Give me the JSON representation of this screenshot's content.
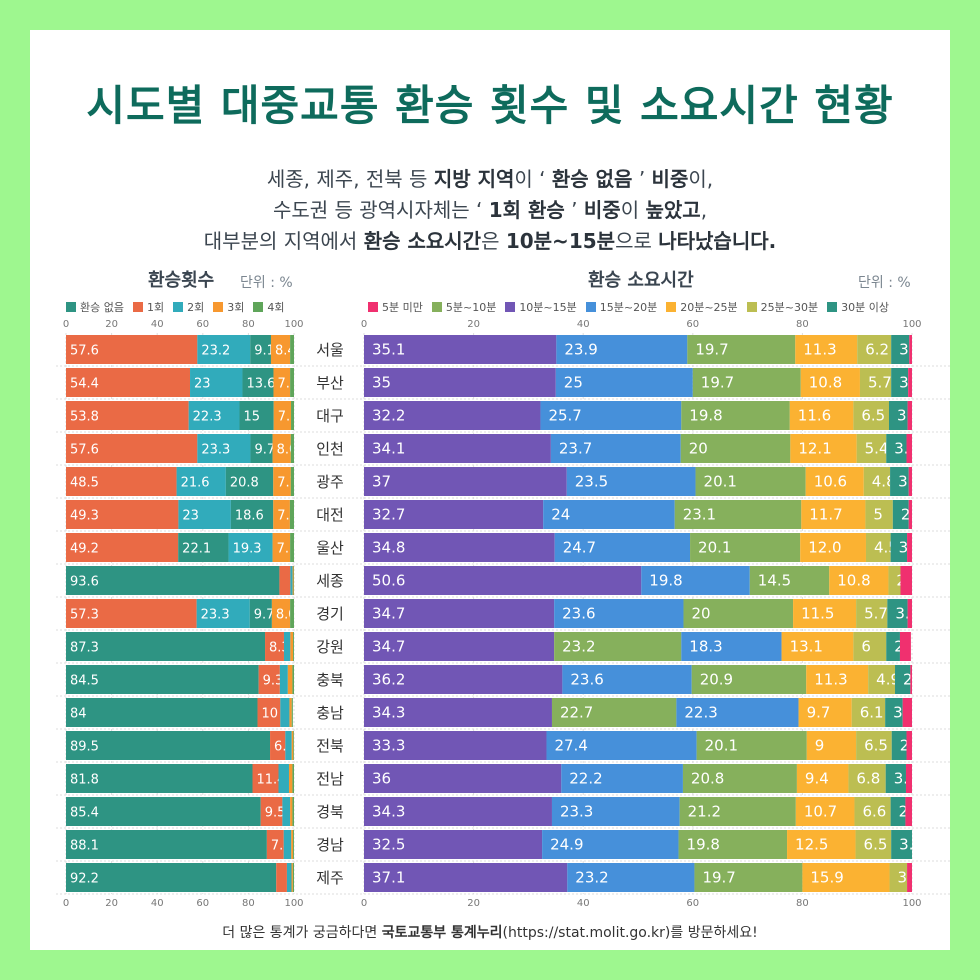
{
  "title": "시도별 대중교통 환승 횟수 및 소요시간 현황",
  "subtitle": [
    [
      {
        "t": "세종, 제주, 전북 등 "
      },
      {
        "t": "지방 지역",
        "b": true
      },
      {
        "t": "이 ‘ "
      },
      {
        "t": "환승 없음",
        "b": true
      },
      {
        "t": " ’ "
      },
      {
        "t": "비중",
        "b": true
      },
      {
        "t": "이,"
      }
    ],
    [
      {
        "t": "수도권 등 광역시자체는 ‘ "
      },
      {
        "t": "1회 환승",
        "b": true
      },
      {
        "t": " ’ "
      },
      {
        "t": "비중",
        "b": true
      },
      {
        "t": "이 "
      },
      {
        "t": "높았고",
        "b": true
      },
      {
        "t": ","
      }
    ],
    [
      {
        "t": "대부분의 지역에서 "
      },
      {
        "t": "환승 소요시간",
        "b": true
      },
      {
        "t": "은 "
      },
      {
        "t": "10분~15분",
        "b": true
      },
      {
        "t": "으로 "
      },
      {
        "t": "나타났습니다.",
        "b": true
      }
    ]
  ],
  "footer": [
    {
      "t": "더 많은 통계가 궁금하다면 "
    },
    {
      "t": "국토교통부 통계누리",
      "b": true
    },
    {
      "t": "(https://stat.molit.go.kr)를 방문하세요!"
    }
  ],
  "regions": [
    "서울",
    "부산",
    "대구",
    "인천",
    "광주",
    "대전",
    "울산",
    "세종",
    "경기",
    "강원",
    "충북",
    "충남",
    "전북",
    "전남",
    "경북",
    "경남",
    "제주"
  ],
  "chart_data": [
    {
      "type": "bar",
      "orientation": "horizontal",
      "stacked": true,
      "title": "환승횟수",
      "unit": "단위 : %",
      "xlim": [
        0,
        100
      ],
      "ticks": [
        "0",
        "20",
        "40",
        "60",
        "80",
        "100"
      ],
      "legend_position": "top",
      "series": [
        {
          "name": "환승 없음",
          "color": "#2e9483"
        },
        {
          "name": "1회",
          "color": "#ea6a45"
        },
        {
          "name": "2회",
          "color": "#31abbb"
        },
        {
          "name": "3회",
          "color": "#f7982f"
        },
        {
          "name": "4회",
          "color": "#5fa55a"
        }
      ],
      "rows": [
        [
          [
            1,
            57.6,
            "57.6"
          ],
          [
            2,
            23.2,
            "23.2"
          ],
          [
            0,
            9.1,
            "9.1"
          ],
          [
            3,
            8.4,
            "8.4"
          ],
          [
            4,
            1.7
          ]
        ],
        [
          [
            1,
            54.4,
            "54.4"
          ],
          [
            2,
            23,
            "23"
          ],
          [
            0,
            13.6,
            "13.6"
          ],
          [
            3,
            7.3,
            "7.3"
          ],
          [
            4,
            1.7
          ]
        ],
        [
          [
            1,
            53.8,
            "53.8"
          ],
          [
            2,
            22.3,
            "22.3"
          ],
          [
            0,
            15,
            "15"
          ],
          [
            3,
            7.6,
            "7.6"
          ],
          [
            4,
            1.3
          ]
        ],
        [
          [
            1,
            57.6,
            "57.6"
          ],
          [
            2,
            23.3,
            "23.3"
          ],
          [
            0,
            9.7,
            "9.7"
          ],
          [
            3,
            8.0,
            "8.0"
          ],
          [
            4,
            1.4
          ]
        ],
        [
          [
            1,
            48.5,
            "48.5"
          ],
          [
            2,
            21.6,
            "21.6"
          ],
          [
            0,
            20.8,
            "20.8"
          ],
          [
            3,
            7.7,
            "7.7"
          ],
          [
            4,
            1.4
          ]
        ],
        [
          [
            1,
            49.3,
            "49.3"
          ],
          [
            2,
            23,
            "23"
          ],
          [
            0,
            18.6,
            "18.6"
          ],
          [
            3,
            7.3,
            "7.3"
          ],
          [
            4,
            1.8
          ]
        ],
        [
          [
            1,
            49.2,
            "49.2"
          ],
          [
            0,
            22.1,
            "22.1"
          ],
          [
            2,
            19.3,
            "19.3"
          ],
          [
            3,
            7.7,
            "7.7"
          ],
          [
            4,
            1.7
          ]
        ],
        [
          [
            0,
            93.6,
            "93.6"
          ],
          [
            1,
            4.8
          ],
          [
            2,
            1.0
          ],
          [
            3,
            0.4
          ],
          [
            4,
            0.2
          ]
        ],
        [
          [
            1,
            57.3,
            "57.3"
          ],
          [
            2,
            23.3,
            "23.3"
          ],
          [
            0,
            9.7,
            "9.7"
          ],
          [
            3,
            8.0,
            "8.0"
          ],
          [
            4,
            1.7
          ]
        ],
        [
          [
            0,
            87.3,
            "87.3"
          ],
          [
            1,
            8.3,
            "8.3"
          ],
          [
            2,
            2.8
          ],
          [
            3,
            1.2
          ],
          [
            4,
            0.4
          ]
        ],
        [
          [
            0,
            84.5,
            "84.5"
          ],
          [
            1,
            9.3,
            "9.3"
          ],
          [
            2,
            3.5
          ],
          [
            3,
            2.0
          ],
          [
            4,
            0.7
          ]
        ],
        [
          [
            0,
            84,
            "84"
          ],
          [
            1,
            10,
            "10"
          ],
          [
            2,
            4.0
          ],
          [
            3,
            1.0
          ],
          [
            4,
            0.5
          ]
        ],
        [
          [
            0,
            89.5,
            "89.5"
          ],
          [
            1,
            6.7,
            "6.7"
          ],
          [
            2,
            2.8
          ],
          [
            3,
            0.7
          ],
          [
            4,
            0.3
          ]
        ],
        [
          [
            0,
            81.8,
            "81.8"
          ],
          [
            1,
            11.4,
            "11.4"
          ],
          [
            2,
            4.6
          ],
          [
            3,
            1.5
          ],
          [
            4,
            0.7
          ]
        ],
        [
          [
            0,
            85.4,
            "85.4"
          ],
          [
            1,
            9.5,
            "9.5"
          ],
          [
            2,
            3.4
          ],
          [
            3,
            1.0
          ],
          [
            4,
            0.7
          ]
        ],
        [
          [
            0,
            88.1,
            "88.1"
          ],
          [
            1,
            7.4,
            "7.4"
          ],
          [
            2,
            3.3
          ],
          [
            3,
            0.8
          ],
          [
            4,
            0.4
          ]
        ],
        [
          [
            0,
            92.2,
            "92.2"
          ],
          [
            1,
            4.7
          ],
          [
            2,
            2.0
          ],
          [
            3,
            0.6
          ],
          [
            4,
            0.5
          ]
        ]
      ]
    },
    {
      "type": "bar",
      "orientation": "horizontal",
      "stacked": true,
      "title": "환승 소요시간",
      "unit": "단위 : %",
      "xlim": [
        0,
        100
      ],
      "ticks": [
        "0",
        "20",
        "40",
        "60",
        "80",
        "100"
      ],
      "legend_position": "top",
      "series": [
        {
          "name": "5분 미만",
          "color": "#f0306f"
        },
        {
          "name": "5분~10분",
          "color": "#86b05c"
        },
        {
          "name": "10분~15분",
          "color": "#7156b5"
        },
        {
          "name": "15분~20분",
          "color": "#4690da"
        },
        {
          "name": "20분~25분",
          "color": "#fbb232"
        },
        {
          "name": "25분~30분",
          "color": "#bcbe52"
        },
        {
          "name": "30분 이상",
          "color": "#2e9483"
        }
      ],
      "rows": [
        [
          [
            2,
            35.1,
            "35.1"
          ],
          [
            3,
            23.9,
            "23.9"
          ],
          [
            1,
            19.7,
            "19.7"
          ],
          [
            4,
            11.3,
            "11.3"
          ],
          [
            5,
            6.2,
            "6.2"
          ],
          [
            6,
            3.3,
            "3.3"
          ],
          [
            0,
            0.5
          ]
        ],
        [
          [
            2,
            35,
            "35"
          ],
          [
            3,
            25,
            "25"
          ],
          [
            1,
            19.7,
            "19.7"
          ],
          [
            4,
            10.8,
            "10.8"
          ],
          [
            5,
            5.7,
            "5.7"
          ],
          [
            6,
            3.1,
            "3.1"
          ],
          [
            0,
            0.7
          ]
        ],
        [
          [
            2,
            32.2,
            "32.2"
          ],
          [
            3,
            25.7,
            "25.7"
          ],
          [
            1,
            19.8,
            "19.8"
          ],
          [
            4,
            11.6,
            "11.6"
          ],
          [
            5,
            6.5,
            "6.5"
          ],
          [
            6,
            3.4,
            "3.4"
          ],
          [
            0,
            0.8
          ]
        ],
        [
          [
            2,
            34.1,
            "34.1"
          ],
          [
            3,
            23.7,
            "23.7"
          ],
          [
            1,
            20,
            "20"
          ],
          [
            4,
            12.1,
            "12.1"
          ],
          [
            5,
            5.4,
            "5.4"
          ],
          [
            6,
            3.7,
            "3.7"
          ],
          [
            0,
            1.0
          ]
        ],
        [
          [
            2,
            37,
            "37"
          ],
          [
            3,
            23.5,
            "23.5"
          ],
          [
            1,
            20.1,
            "20.1"
          ],
          [
            4,
            10.6,
            "10.6"
          ],
          [
            5,
            4.8,
            "4.8"
          ],
          [
            6,
            3.4,
            "3.4"
          ],
          [
            0,
            0.6
          ]
        ],
        [
          [
            2,
            32.7,
            "32.7"
          ],
          [
            3,
            24,
            "24"
          ],
          [
            1,
            23.1,
            "23.1"
          ],
          [
            4,
            11.7,
            "11.7"
          ],
          [
            5,
            5,
            "5"
          ],
          [
            6,
            2.9,
            "2.9"
          ],
          [
            0,
            0.6
          ]
        ],
        [
          [
            2,
            34.8,
            "34.8"
          ],
          [
            3,
            24.7,
            "24.7"
          ],
          [
            1,
            20.1,
            "20.1"
          ],
          [
            4,
            12.0,
            "12.0"
          ],
          [
            5,
            4.5,
            "4.5"
          ],
          [
            6,
            3.0,
            "3.0"
          ],
          [
            0,
            0.9
          ]
        ],
        [
          [
            2,
            50.6,
            "50.6"
          ],
          [
            3,
            19.8,
            "19.8"
          ],
          [
            1,
            14.5,
            "14.5"
          ],
          [
            4,
            10.8,
            "10.8"
          ],
          [
            5,
            2.2,
            "2.2"
          ],
          [
            0,
            2.1
          ]
        ],
        [
          [
            2,
            34.7,
            "34.7"
          ],
          [
            3,
            23.6,
            "23.6"
          ],
          [
            1,
            20,
            "20"
          ],
          [
            4,
            11.5,
            "11.5"
          ],
          [
            5,
            5.7,
            "5.7"
          ],
          [
            6,
            3.7,
            "3.7"
          ],
          [
            0,
            0.8
          ]
        ],
        [
          [
            2,
            34.7,
            "34.7"
          ],
          [
            1,
            23.2,
            "23.2"
          ],
          [
            3,
            18.3,
            "18.3"
          ],
          [
            4,
            13.1,
            "13.1"
          ],
          [
            5,
            6,
            "6"
          ],
          [
            6,
            2.5,
            "2.5"
          ],
          [
            0,
            2.0
          ]
        ],
        [
          [
            2,
            36.2,
            "36.2"
          ],
          [
            3,
            23.6,
            "23.6"
          ],
          [
            1,
            20.9,
            "20.9"
          ],
          [
            4,
            11.3,
            "11.3"
          ],
          [
            5,
            4.9,
            "4.9"
          ],
          [
            6,
            2.8,
            "2.8"
          ],
          [
            0,
            0.3
          ]
        ],
        [
          [
            2,
            34.3,
            "34.3"
          ],
          [
            1,
            22.7,
            "22.7"
          ],
          [
            3,
            22.3,
            "22.3"
          ],
          [
            4,
            9.7,
            "9.7"
          ],
          [
            5,
            6.1,
            "6.1"
          ],
          [
            6,
            3.2,
            "3.2"
          ],
          [
            0,
            1.7
          ]
        ],
        [
          [
            2,
            33.3,
            "33.3"
          ],
          [
            3,
            27.4,
            "27.4"
          ],
          [
            1,
            20.1,
            "20.1"
          ],
          [
            4,
            9,
            "9"
          ],
          [
            5,
            6.5,
            "6.5"
          ],
          [
            6,
            2.7,
            "2.7"
          ],
          [
            0,
            1.0
          ]
        ],
        [
          [
            2,
            36,
            "36"
          ],
          [
            3,
            22.2,
            "22.2"
          ],
          [
            1,
            20.8,
            "20.8"
          ],
          [
            4,
            9.4,
            "9.4"
          ],
          [
            5,
            6.8,
            "6.8"
          ],
          [
            6,
            3.7,
            "3.7"
          ],
          [
            0,
            1.1
          ]
        ],
        [
          [
            2,
            34.3,
            "34.3"
          ],
          [
            3,
            23.3,
            "23.3"
          ],
          [
            1,
            21.2,
            "21.2"
          ],
          [
            4,
            10.7,
            "10.7"
          ],
          [
            5,
            6.6,
            "6.6"
          ],
          [
            6,
            2.7,
            "2.7"
          ],
          [
            0,
            1.2
          ]
        ],
        [
          [
            2,
            32.5,
            "32.5"
          ],
          [
            3,
            24.9,
            "24.9"
          ],
          [
            1,
            19.8,
            "19.8"
          ],
          [
            4,
            12.5,
            "12.5"
          ],
          [
            5,
            6.5,
            "6.5"
          ],
          [
            6,
            3.8,
            "3.8"
          ]
        ],
        [
          [
            2,
            37.1,
            "37.1"
          ],
          [
            3,
            23.2,
            "23.2"
          ],
          [
            1,
            19.7,
            "19.7"
          ],
          [
            4,
            15.9,
            "15.9"
          ],
          [
            5,
            3.2,
            "3.2"
          ],
          [
            0,
            0.9
          ]
        ]
      ]
    }
  ]
}
